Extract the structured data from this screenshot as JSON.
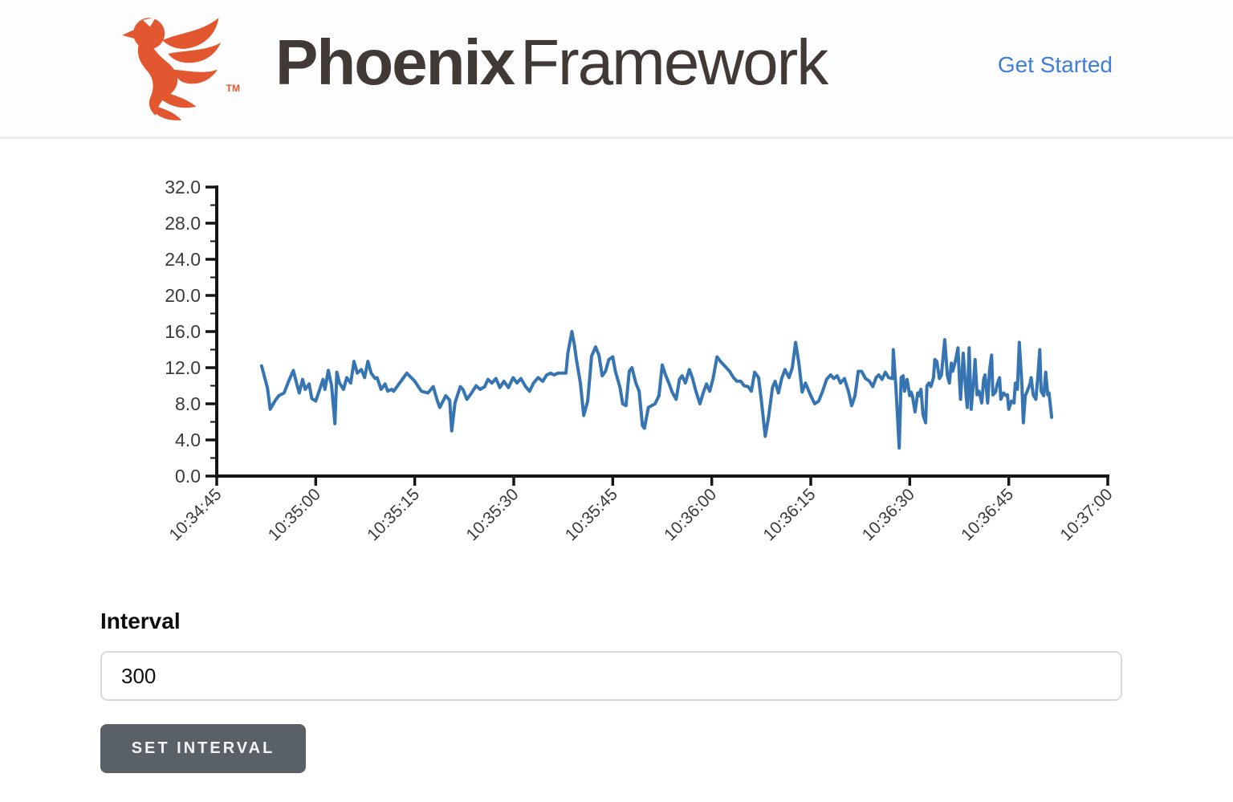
{
  "header": {
    "logo_primary": "Phoenix",
    "logo_secondary": "Framework",
    "trademark": "TM",
    "get_started_label": "Get Started",
    "brand_orange": "#e2572f",
    "title_color": "#403936",
    "link_blue": "#3e7ed6"
  },
  "form": {
    "interval_label": "Interval",
    "interval_value": "300",
    "button_label": "SET INTERVAL",
    "button_color": "#596067"
  },
  "chart_data": {
    "type": "line",
    "title": "",
    "xlabel": "",
    "ylabel": "",
    "grid": false,
    "legend": "none",
    "line_color": "#3775b2",
    "axis_color": "#151515",
    "label_color": "#3a3a3a",
    "ylim": [
      0,
      32
    ],
    "y_ticks": [
      0,
      4,
      8,
      12,
      16,
      20,
      24,
      28,
      32
    ],
    "y_minor_tick_step": 2,
    "x_axis_span_seconds": 135,
    "x_tick_interval_seconds": 15,
    "x_tick_labels": [
      "10:34:45",
      "10:35:00",
      "10:35:15",
      "10:35:30",
      "10:35:45",
      "10:36:00",
      "10:36:15",
      "10:36:30",
      "10:36:45",
      "10:37:00"
    ],
    "points_t_v": [
      [
        6.8,
        12.2
      ],
      [
        7.7,
        9.7
      ],
      [
        8.1,
        7.4
      ],
      [
        8.8,
        8.3
      ],
      [
        9.4,
        8.9
      ],
      [
        10.2,
        9.2
      ],
      [
        10.9,
        10.5
      ],
      [
        11.6,
        11.7
      ],
      [
        12.2,
        10.0
      ],
      [
        12.5,
        9.2
      ],
      [
        13.0,
        10.7
      ],
      [
        13.4,
        9.6
      ],
      [
        14.0,
        10.2
      ],
      [
        14.4,
        8.6
      ],
      [
        15.0,
        8.3
      ],
      [
        15.6,
        9.6
      ],
      [
        16.1,
        10.7
      ],
      [
        16.4,
        9.6
      ],
      [
        16.9,
        11.7
      ],
      [
        17.4,
        10.0
      ],
      [
        17.9,
        5.8
      ],
      [
        18.2,
        11.5
      ],
      [
        18.6,
        10.3
      ],
      [
        19.2,
        9.6
      ],
      [
        19.7,
        10.9
      ],
      [
        20.3,
        10.3
      ],
      [
        20.8,
        12.7
      ],
      [
        21.3,
        11.4
      ],
      [
        21.9,
        11.8
      ],
      [
        22.4,
        10.9
      ],
      [
        22.9,
        12.7
      ],
      [
        23.4,
        11.4
      ],
      [
        24.0,
        10.8
      ],
      [
        24.3,
        10.9
      ],
      [
        24.9,
        9.6
      ],
      [
        25.5,
        10.2
      ],
      [
        25.9,
        9.4
      ],
      [
        26.5,
        9.6
      ],
      [
        26.8,
        9.4
      ],
      [
        28.8,
        11.4
      ],
      [
        30.0,
        10.5
      ],
      [
        31.0,
        9.4
      ],
      [
        32.0,
        9.2
      ],
      [
        32.8,
        9.9
      ],
      [
        33.4,
        8.4
      ],
      [
        33.8,
        7.6
      ],
      [
        34.7,
        8.9
      ],
      [
        35.3,
        8.4
      ],
      [
        35.6,
        5.0
      ],
      [
        36.1,
        8.1
      ],
      [
        36.9,
        9.9
      ],
      [
        37.3,
        9.6
      ],
      [
        37.9,
        8.5
      ],
      [
        38.6,
        9.2
      ],
      [
        39.3,
        10.0
      ],
      [
        39.9,
        9.6
      ],
      [
        40.6,
        9.9
      ],
      [
        41.1,
        10.7
      ],
      [
        41.7,
        10.3
      ],
      [
        42.3,
        10.8
      ],
      [
        42.9,
        9.8
      ],
      [
        43.5,
        10.5
      ],
      [
        44.2,
        9.8
      ],
      [
        44.9,
        10.9
      ],
      [
        45.5,
        10.3
      ],
      [
        46.1,
        10.8
      ],
      [
        46.8,
        9.9
      ],
      [
        47.4,
        9.4
      ],
      [
        48.0,
        10.3
      ],
      [
        48.7,
        10.9
      ],
      [
        49.4,
        10.5
      ],
      [
        50.0,
        11.2
      ],
      [
        50.6,
        11.4
      ],
      [
        51.1,
        11.2
      ],
      [
        51.7,
        11.4
      ],
      [
        52.3,
        11.4
      ],
      [
        52.9,
        11.4
      ],
      [
        53.2,
        13.6
      ],
      [
        53.8,
        16.0
      ],
      [
        54.2,
        14.5
      ],
      [
        54.5,
        12.9
      ],
      [
        55.1,
        10.3
      ],
      [
        55.6,
        6.7
      ],
      [
        56.2,
        8.3
      ],
      [
        56.8,
        13.3
      ],
      [
        57.4,
        14.3
      ],
      [
        57.9,
        13.4
      ],
      [
        58.4,
        11.1
      ],
      [
        58.9,
        11.6
      ],
      [
        59.4,
        12.9
      ],
      [
        60.0,
        13.2
      ],
      [
        60.4,
        11.6
      ],
      [
        61.1,
        9.8
      ],
      [
        61.5,
        8.0
      ],
      [
        62.0,
        7.8
      ],
      [
        62.5,
        11.6
      ],
      [
        62.9,
        12.0
      ],
      [
        63.5,
        10.3
      ],
      [
        64.0,
        9.4
      ],
      [
        64.5,
        5.6
      ],
      [
        64.8,
        5.3
      ],
      [
        65.4,
        7.6
      ],
      [
        65.9,
        7.8
      ],
      [
        66.4,
        8.0
      ],
      [
        67.0,
        8.9
      ],
      [
        67.5,
        12.3
      ],
      [
        68.0,
        11.2
      ],
      [
        68.5,
        10.3
      ],
      [
        69.0,
        9.3
      ],
      [
        69.6,
        8.5
      ],
      [
        70.1,
        10.7
      ],
      [
        70.5,
        11.1
      ],
      [
        71.0,
        10.3
      ],
      [
        71.6,
        11.8
      ],
      [
        72.1,
        10.8
      ],
      [
        72.6,
        9.4
      ],
      [
        73.2,
        8.0
      ],
      [
        73.7,
        9.2
      ],
      [
        74.2,
        10.2
      ],
      [
        74.7,
        9.4
      ],
      [
        75.2,
        10.8
      ],
      [
        75.8,
        13.2
      ],
      [
        76.3,
        12.7
      ],
      [
        76.7,
        12.4
      ],
      [
        77.2,
        12.0
      ],
      [
        77.7,
        11.6
      ],
      [
        78.3,
        10.9
      ],
      [
        78.8,
        10.5
      ],
      [
        79.4,
        10.5
      ],
      [
        79.9,
        10.0
      ],
      [
        80.5,
        9.9
      ],
      [
        81.0,
        9.4
      ],
      [
        81.5,
        11.5
      ],
      [
        82.1,
        10.9
      ],
      [
        82.5,
        8.5
      ],
      [
        83.1,
        4.4
      ],
      [
        83.6,
        6.5
      ],
      [
        84.2,
        9.8
      ],
      [
        84.6,
        10.5
      ],
      [
        85.1,
        9.2
      ],
      [
        85.6,
        10.8
      ],
      [
        86.1,
        11.8
      ],
      [
        86.7,
        10.9
      ],
      [
        87.2,
        12.0
      ],
      [
        87.7,
        14.8
      ],
      [
        88.2,
        12.5
      ],
      [
        88.7,
        9.3
      ],
      [
        89.2,
        10.3
      ],
      [
        90.0,
        8.9
      ],
      [
        90.6,
        8.0
      ],
      [
        91.2,
        8.3
      ],
      [
        91.8,
        9.4
      ],
      [
        92.4,
        10.7
      ],
      [
        93.0,
        11.2
      ],
      [
        93.5,
        10.8
      ],
      [
        94.0,
        11.1
      ],
      [
        94.5,
        10.3
      ],
      [
        95.1,
        10.8
      ],
      [
        95.7,
        9.4
      ],
      [
        96.2,
        7.8
      ],
      [
        96.7,
        8.9
      ],
      [
        97.2,
        11.6
      ],
      [
        97.7,
        11.6
      ],
      [
        98.3,
        10.8
      ],
      [
        98.9,
        10.5
      ],
      [
        99.4,
        9.9
      ],
      [
        99.9,
        10.9
      ],
      [
        100.3,
        11.2
      ],
      [
        100.8,
        10.7
      ],
      [
        101.3,
        11.5
      ],
      [
        101.8,
        10.9
      ],
      [
        102.4,
        10.8
      ],
      [
        102.5,
        14.0
      ],
      [
        102.9,
        9.8
      ],
      [
        103.1,
        7.2
      ],
      [
        103.4,
        3.1
      ],
      [
        103.7,
        10.9
      ],
      [
        104.0,
        11.1
      ],
      [
        104.2,
        9.4
      ],
      [
        104.6,
        10.7
      ],
      [
        105.0,
        8.9
      ],
      [
        105.2,
        9.3
      ],
      [
        105.4,
        8.9
      ],
      [
        105.8,
        7.1
      ],
      [
        106.2,
        9.2
      ],
      [
        106.4,
        8.9
      ],
      [
        106.7,
        9.6
      ],
      [
        107.0,
        6.8
      ],
      [
        107.4,
        5.9
      ],
      [
        107.6,
        10.0
      ],
      [
        107.9,
        10.3
      ],
      [
        108.2,
        9.9
      ],
      [
        108.6,
        10.9
      ],
      [
        108.8,
        12.9
      ],
      [
        109.1,
        12.7
      ],
      [
        109.5,
        10.8
      ],
      [
        109.8,
        11.2
      ],
      [
        110.1,
        13.6
      ],
      [
        110.3,
        15.1
      ],
      [
        110.7,
        11.1
      ],
      [
        111.0,
        10.3
      ],
      [
        111.3,
        12.5
      ],
      [
        111.5,
        11.6
      ],
      [
        111.9,
        12.7
      ],
      [
        112.3,
        14.2
      ],
      [
        112.5,
        11.1
      ],
      [
        112.7,
        8.5
      ],
      [
        113.1,
        13.6
      ],
      [
        113.5,
        9.3
      ],
      [
        113.7,
        7.6
      ],
      [
        114.0,
        14.2
      ],
      [
        114.3,
        7.4
      ],
      [
        114.7,
        10.7
      ],
      [
        114.9,
        12.9
      ],
      [
        115.2,
        9.0
      ],
      [
        115.5,
        9.4
      ],
      [
        115.9,
        8.1
      ],
      [
        116.2,
        10.7
      ],
      [
        116.4,
        11.2
      ],
      [
        116.8,
        8.1
      ],
      [
        117.1,
        11.8
      ],
      [
        117.4,
        13.4
      ],
      [
        117.6,
        9.0
      ],
      [
        118.0,
        9.3
      ],
      [
        118.3,
        10.3
      ],
      [
        118.6,
        10.9
      ],
      [
        118.8,
        8.5
      ],
      [
        119.2,
        9.2
      ],
      [
        119.6,
        8.9
      ],
      [
        119.8,
        9.0
      ],
      [
        120.0,
        7.4
      ],
      [
        120.4,
        8.3
      ],
      [
        120.8,
        8.1
      ],
      [
        121.0,
        10.3
      ],
      [
        121.3,
        9.6
      ],
      [
        121.6,
        14.8
      ],
      [
        122.0,
        10.0
      ],
      [
        122.2,
        5.9
      ],
      [
        122.5,
        8.9
      ],
      [
        122.8,
        9.4
      ],
      [
        123.2,
        10.2
      ],
      [
        123.4,
        10.9
      ],
      [
        123.7,
        9.0
      ],
      [
        124.1,
        8.5
      ],
      [
        124.4,
        10.9
      ],
      [
        124.7,
        14.0
      ],
      [
        124.9,
        9.4
      ],
      [
        125.3,
        8.9
      ],
      [
        125.6,
        11.5
      ],
      [
        125.9,
        9.0
      ],
      [
        126.1,
        9.2
      ],
      [
        126.5,
        6.5
      ]
    ]
  }
}
